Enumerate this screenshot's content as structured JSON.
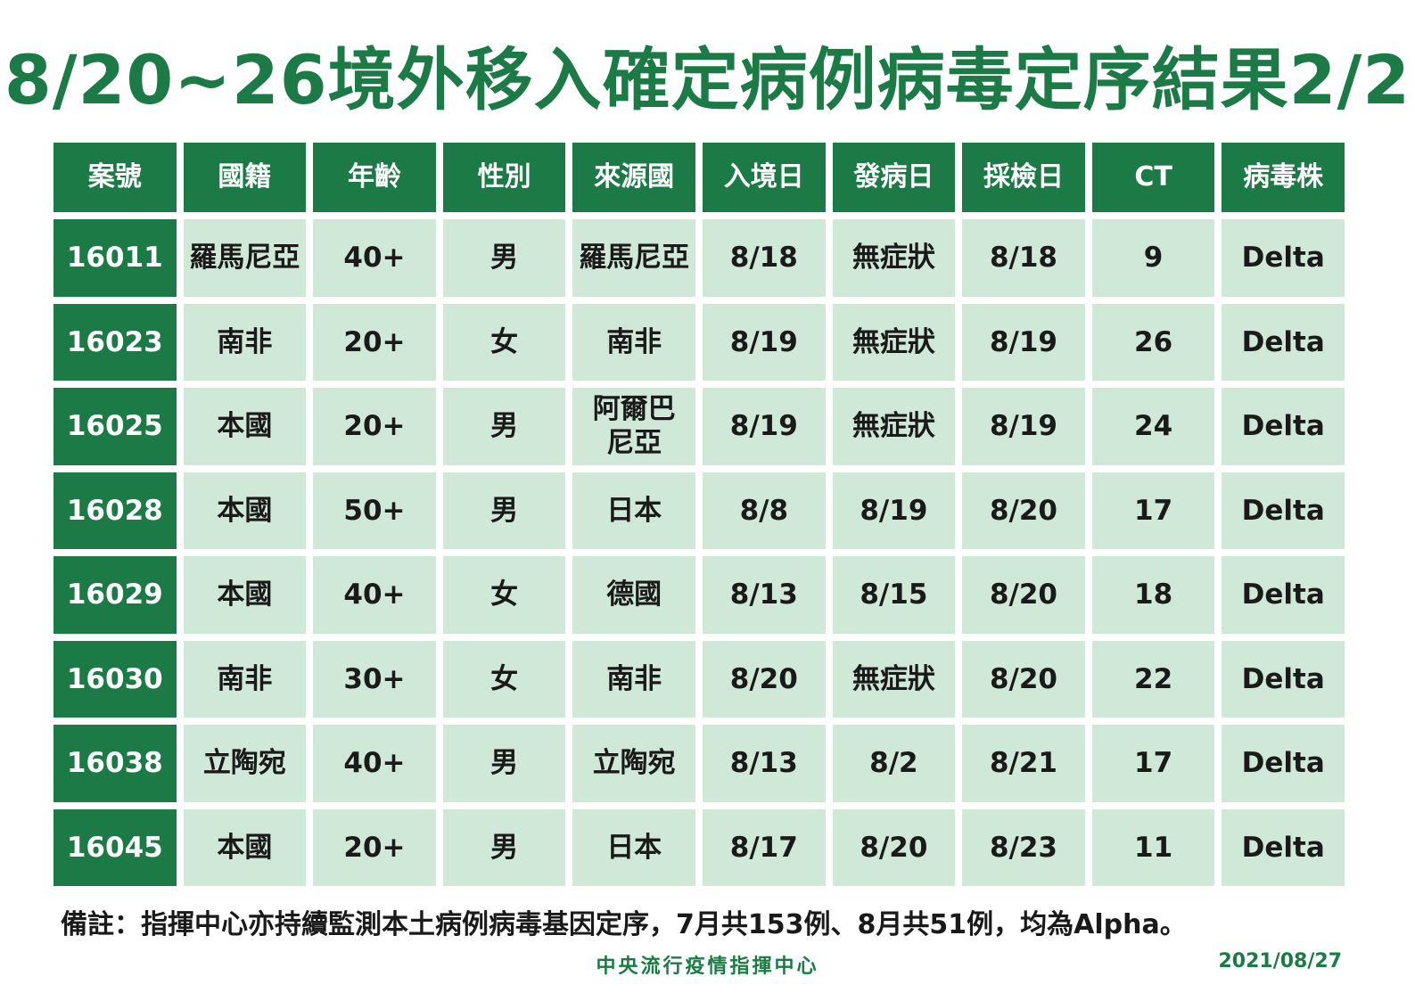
{
  "title": "8/20~26境外移入確定病例病毒定序結果2/2",
  "colors": {
    "primary_green": "#1b7a45",
    "cell_green": "#cfe8d8"
  },
  "table": {
    "headers": [
      "案號",
      "國籍",
      "年齡",
      "性別",
      "來源國",
      "入境日",
      "發病日",
      "採檢日",
      "CT",
      "病毒株"
    ],
    "rows": [
      [
        "16011",
        "羅馬尼亞",
        "40+",
        "男",
        "羅馬尼亞",
        "8/18",
        "無症狀",
        "8/18",
        "9",
        "Delta"
      ],
      [
        "16023",
        "南非",
        "20+",
        "女",
        "南非",
        "8/19",
        "無症狀",
        "8/19",
        "26",
        "Delta"
      ],
      [
        "16025",
        "本國",
        "20+",
        "男",
        "阿爾巴\n尼亞",
        "8/19",
        "無症狀",
        "8/19",
        "24",
        "Delta"
      ],
      [
        "16028",
        "本國",
        "50+",
        "男",
        "日本",
        "8/8",
        "8/19",
        "8/20",
        "17",
        "Delta"
      ],
      [
        "16029",
        "本國",
        "40+",
        "女",
        "德國",
        "8/13",
        "8/15",
        "8/20",
        "18",
        "Delta"
      ],
      [
        "16030",
        "南非",
        "30+",
        "女",
        "南非",
        "8/20",
        "無症狀",
        "8/20",
        "22",
        "Delta"
      ],
      [
        "16038",
        "立陶宛",
        "40+",
        "男",
        "立陶宛",
        "8/13",
        "8/2",
        "8/21",
        "17",
        "Delta"
      ],
      [
        "16045",
        "本國",
        "20+",
        "男",
        "日本",
        "8/17",
        "8/20",
        "8/23",
        "11",
        "Delta"
      ]
    ]
  },
  "note": "備註：指揮中心亦持續監測本土病例病毒基因定序，7月共153例、8月共51例，均為Alpha。",
  "footer": {
    "organization": "中央流行疫情指揮中心",
    "date": "2021/08/27"
  }
}
